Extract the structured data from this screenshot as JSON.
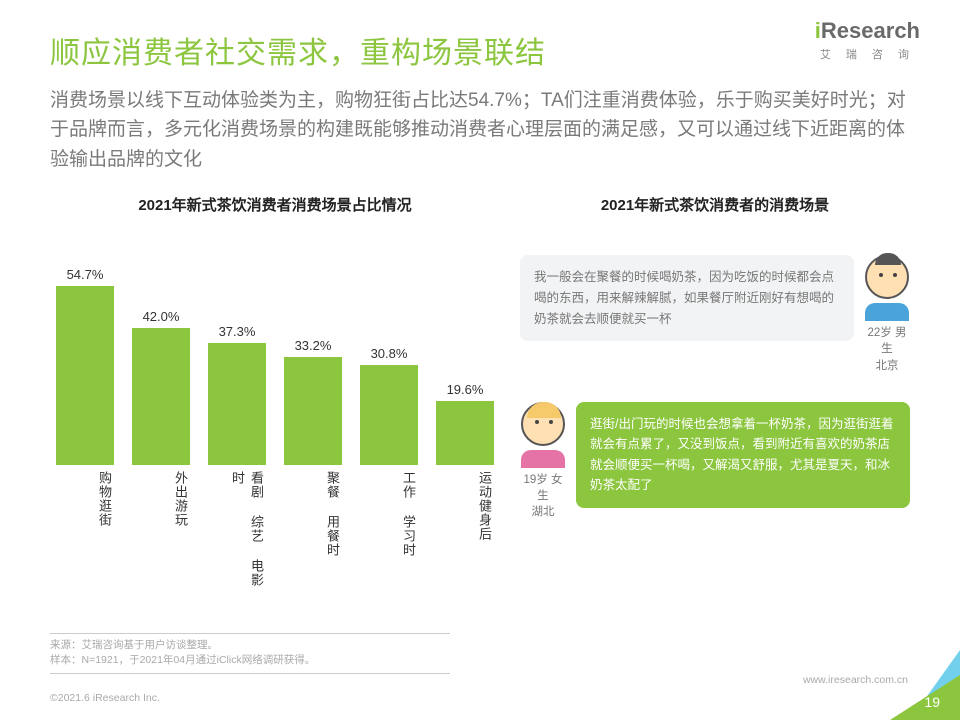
{
  "logo": {
    "brand": "iResearch",
    "sub": "艾 瑞 咨 询"
  },
  "title": "顺应消费者社交需求，重构场景联结",
  "subtitle": "消费场景以线下互动体验类为主，购物狂街占比达54.7%；TA们注重消费体验，乐于购买美好时光；对于品牌而言，多元化消费场景的构建既能够推动消费者心理层面的满足感，又可以通过线下近距离的体验输出品牌的文化",
  "chart": {
    "type": "bar",
    "title": "2021年新式茶饮消费者消费场景占比情况",
    "categories": [
      "购物逛街",
      "外出游玩",
      "看剧 综艺 电影时",
      "聚餐 用餐时",
      "工作 学习时",
      "运动健身后"
    ],
    "values": [
      54.7,
      42.0,
      37.3,
      33.2,
      30.8,
      19.6
    ],
    "value_suffix": "%",
    "bar_color": "#8cc63f",
    "ylim": [
      0,
      55
    ],
    "label_fontsize": 13,
    "background_color": "#ffffff"
  },
  "right_title": "2021年新式茶饮消费者的消费场景",
  "quotes": [
    {
      "text": "我一般会在聚餐的时候喝奶茶，因为吃饭的时候都会点喝的东西，用来解辣解腻，如果餐厅附近刚好有想喝的奶茶就会去顺便就买一杯",
      "persona": "22岁 男生\n北京",
      "side": "right",
      "bubble_bg": "#f2f3f4",
      "bubble_color": "#777"
    },
    {
      "text": "逛街/出门玩的时候也会想拿着一杯奶茶，因为逛街逛着就会有点累了，又没到饭点，看到附近有喜欢的奶茶店就会顺便买一杯喝，又解渴又舒服，尤其是夏天，和冰奶茶太配了",
      "persona": "19岁 女生\n湖北",
      "side": "left",
      "bubble_bg": "#8cc63f",
      "bubble_color": "#ffffff"
    }
  ],
  "source": {
    "line1": "来源：艾瑞咨询基于用户访谈整理。",
    "line2": "样本：N=1921，于2021年04月通过iClick网络调研获得。"
  },
  "footer": "©2021.6 iResearch Inc.",
  "url": "www.iresearch.com.cn",
  "page": "19"
}
